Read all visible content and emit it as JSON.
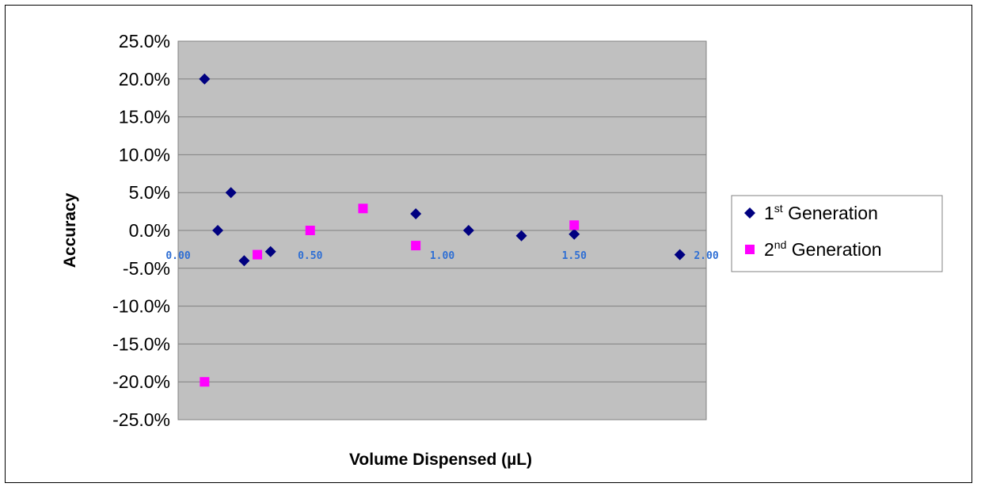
{
  "chart_data": {
    "type": "scatter",
    "xlabel": "Volume Dispensed (µL)",
    "ylabel": "Accuracy",
    "xlim": [
      0,
      2
    ],
    "ylim": [
      -25,
      25
    ],
    "x_ticks": [
      "0.00",
      "0.50",
      "1.00",
      "1.50",
      "2.00"
    ],
    "y_ticks": [
      "25.0%",
      "20.0%",
      "15.0%",
      "10.0%",
      "5.0%",
      "0.0%",
      "-5.0%",
      "-10.0%",
      "-15.0%",
      "-20.0%",
      "-25.0%"
    ],
    "grid": "horizontal",
    "plot_background": "#c0c0c0",
    "legend_position": "right",
    "series": [
      {
        "name": "1st Generation",
        "name_base": "1",
        "name_sup": "st",
        "name_rest": " Generation",
        "marker": "diamond",
        "color": "#000080",
        "x": [
          0.1,
          0.15,
          0.2,
          0.25,
          0.35,
          0.9,
          1.1,
          1.3,
          1.5,
          1.9
        ],
        "y": [
          20.0,
          0.0,
          5.0,
          -4.0,
          -2.8,
          2.2,
          0.0,
          -0.7,
          -0.5,
          -3.2
        ]
      },
      {
        "name": "2nd Generation",
        "name_base": "2",
        "name_sup": "nd",
        "name_rest": " Generation",
        "marker": "square",
        "color": "#ff00ff",
        "x": [
          0.1,
          0.3,
          0.5,
          0.7,
          0.9,
          1.5
        ],
        "y": [
          -20.0,
          -3.2,
          0.0,
          2.9,
          -2.0,
          0.7
        ]
      }
    ]
  }
}
